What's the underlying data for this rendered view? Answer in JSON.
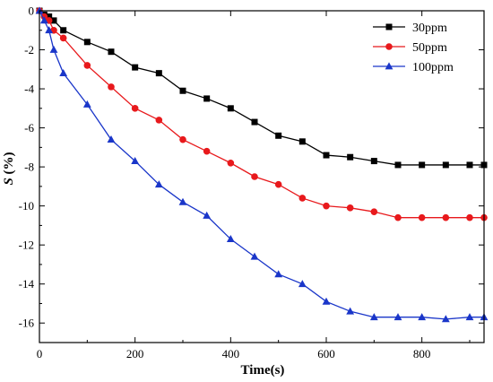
{
  "chart_data": {
    "type": "line",
    "xlabel": "Time(s)",
    "ylabel_main": "S",
    "ylabel_unit": " (%)",
    "xlim": [
      0,
      930
    ],
    "ylim": [
      -17,
      0
    ],
    "xticks": [
      0,
      200,
      400,
      600,
      800
    ],
    "yticks": [
      0,
      -2,
      -4,
      -6,
      -8,
      -10,
      -12,
      -14,
      -16
    ],
    "grid": false,
    "legend_position": "top-right",
    "series": [
      {
        "name": "30ppm",
        "color": "#000000",
        "marker": "square",
        "x": [
          0,
          10,
          20,
          30,
          50,
          100,
          150,
          200,
          250,
          300,
          350,
          400,
          450,
          500,
          550,
          600,
          650,
          700,
          750,
          800,
          850,
          900,
          930
        ],
        "y": [
          0,
          -0.2,
          -0.3,
          -0.5,
          -1.0,
          -1.6,
          -2.1,
          -2.9,
          -3.2,
          -4.1,
          -4.5,
          -5.0,
          -5.7,
          -6.4,
          -6.7,
          -7.4,
          -7.5,
          -7.7,
          -7.9,
          -7.9,
          -7.9,
          -7.9,
          -7.9
        ]
      },
      {
        "name": "50ppm",
        "color": "#e8191c",
        "marker": "circle",
        "x": [
          0,
          10,
          20,
          30,
          50,
          100,
          150,
          200,
          250,
          300,
          350,
          400,
          450,
          500,
          550,
          600,
          650,
          700,
          750,
          800,
          850,
          900,
          930
        ],
        "y": [
          0,
          -0.3,
          -0.5,
          -1.0,
          -1.4,
          -2.8,
          -3.9,
          -5.0,
          -5.6,
          -6.6,
          -7.2,
          -7.8,
          -8.5,
          -8.9,
          -9.6,
          -10.0,
          -10.1,
          -10.3,
          -10.6,
          -10.6,
          -10.6,
          -10.6,
          -10.6
        ]
      },
      {
        "name": "100ppm",
        "color": "#1a36c9",
        "marker": "triangle",
        "x": [
          0,
          10,
          20,
          30,
          50,
          100,
          150,
          200,
          250,
          300,
          350,
          400,
          450,
          500,
          550,
          600,
          650,
          700,
          750,
          800,
          850,
          900,
          930
        ],
        "y": [
          0,
          -0.5,
          -1.0,
          -2.0,
          -3.2,
          -4.8,
          -6.6,
          -7.7,
          -8.9,
          -9.8,
          -10.5,
          -11.7,
          -12.6,
          -13.5,
          -14.0,
          -14.9,
          -15.4,
          -15.7,
          -15.7,
          -15.7,
          -15.8,
          -15.7,
          -15.7
        ]
      }
    ]
  }
}
